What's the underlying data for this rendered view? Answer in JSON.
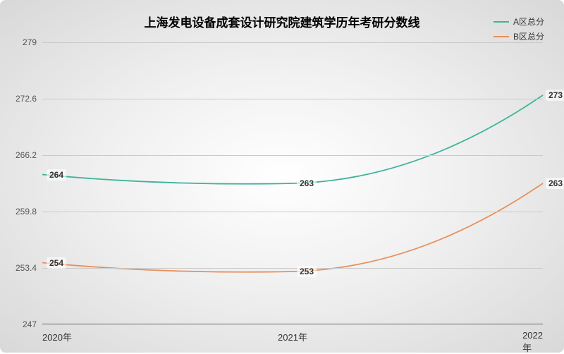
{
  "chart": {
    "title": "上海发电设备成套设计研究院建筑学历年考研分数线",
    "title_fontsize": 17,
    "background_gradient": [
      "#ffffff",
      "#d8d8d8"
    ],
    "ylim": [
      247,
      279
    ],
    "ytick_step": 6.4,
    "yticks": [
      247,
      253.4,
      259.8,
      266.2,
      272.6,
      279
    ],
    "x_categories": [
      "2020年",
      "2021年",
      "2022年"
    ],
    "grid_color": "#c9c9c9",
    "series": [
      {
        "name": "A区总分",
        "color": "#3fb39a",
        "line_width": 1.8,
        "values": [
          264,
          263,
          273
        ],
        "labels": [
          "264",
          "263",
          "273"
        ]
      },
      {
        "name": "B区总分",
        "color": "#e98f5b",
        "line_width": 1.8,
        "values": [
          254,
          253,
          263
        ],
        "labels": [
          "254",
          "253",
          "263"
        ]
      }
    ]
  }
}
